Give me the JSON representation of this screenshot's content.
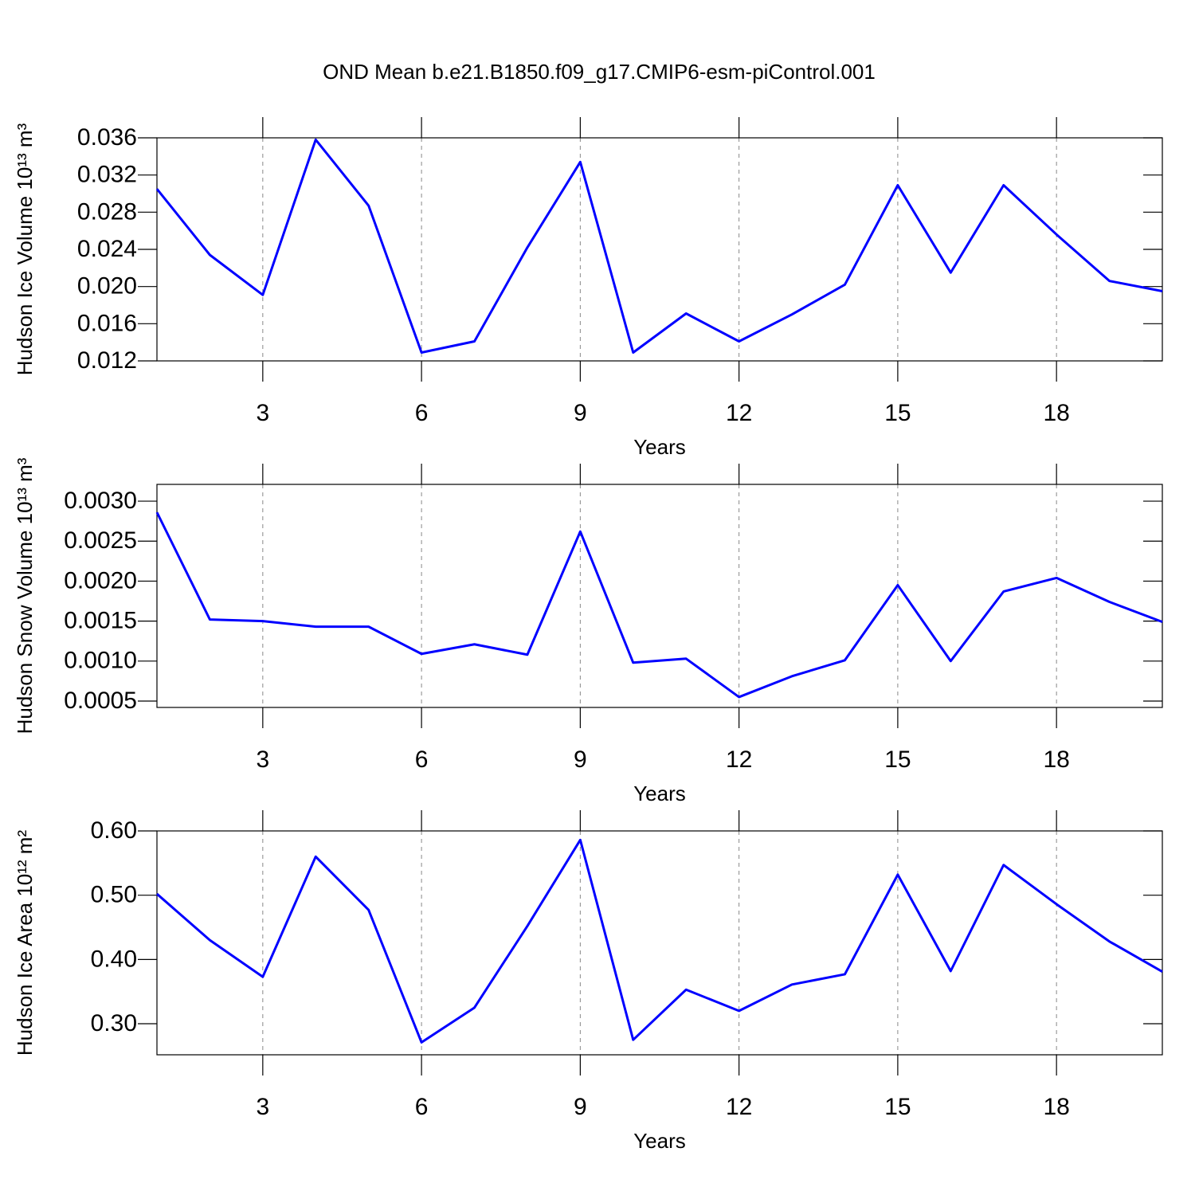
{
  "chart_data": [
    {
      "type": "line",
      "title": "OND Mean b.e21.B1850.f09_g17.CMIP6-esm-piControl.001",
      "ylabel": "Hudson Ice Volume 10¹³ m³",
      "xlabel": "Years",
      "x": [
        1,
        2,
        3,
        4,
        5,
        6,
        7,
        8,
        9,
        10,
        11,
        12,
        13,
        14,
        15,
        16,
        17,
        18,
        19,
        20
      ],
      "series": [
        {
          "color": "#0000ff",
          "values": [
            0.0305,
            0.0234,
            0.0191,
            0.0358,
            0.0287,
            0.0129,
            0.0141,
            0.0242,
            0.0334,
            0.0129,
            0.0171,
            0.0141,
            0.017,
            0.0202,
            0.0309,
            0.0215,
            0.0309,
            0.0256,
            0.0206,
            0.0195
          ]
        }
      ],
      "xlim": [
        1,
        20
      ],
      "xticks": [
        3,
        6,
        9,
        12,
        15,
        18
      ],
      "ylim": [
        0.012,
        0.036
      ],
      "yticks": [
        0.012,
        0.016,
        {
          "value": 0.02,
          "label": "0.020"
        },
        0.024,
        0.028,
        0.032,
        0.036
      ],
      "grid": true
    },
    {
      "type": "line",
      "ylabel": "Hudson Snow Volume 10¹³ m³",
      "xlabel": "Years",
      "x": [
        1,
        2,
        3,
        4,
        5,
        6,
        7,
        8,
        9,
        10,
        11,
        12,
        13,
        14,
        15,
        16,
        17,
        18,
        19,
        20
      ],
      "series": [
        {
          "color": "#0000ff",
          "values": [
            0.00286,
            0.00152,
            0.0015,
            0.00143,
            0.00143,
            0.00109,
            0.00121,
            0.00108,
            0.00262,
            0.00098,
            0.00103,
            0.00055,
            0.00081,
            0.00101,
            0.00195,
            0.001,
            0.00187,
            0.00204,
            0.00174,
            0.00149
          ]
        }
      ],
      "xlim": [
        1,
        20
      ],
      "xticks": [
        3,
        6,
        9,
        12,
        15,
        18
      ],
      "ylim": [
        0.00042,
        0.00321
      ],
      "yticks": [
        0.0005,
        {
          "value": 0.001,
          "label": "0.0010"
        },
        0.0015,
        {
          "value": 0.002,
          "label": "0.0020"
        },
        0.0025,
        {
          "value": 0.003,
          "label": "0.0030"
        }
      ],
      "grid": true
    },
    {
      "type": "line",
      "ylabel": "Hudson Ice Area 10¹² m²",
      "xlabel": "Years",
      "x": [
        1,
        2,
        3,
        4,
        5,
        6,
        7,
        8,
        9,
        10,
        11,
        12,
        13,
        14,
        15,
        16,
        17,
        18,
        19,
        20
      ],
      "series": [
        {
          "color": "#0000ff",
          "values": [
            0.502,
            0.43,
            0.373,
            0.56,
            0.477,
            0.271,
            0.325,
            0.452,
            0.586,
            0.275,
            0.353,
            0.32,
            0.361,
            0.377,
            0.532,
            0.382,
            0.547,
            0.486,
            0.428,
            0.381
          ]
        }
      ],
      "xlim": [
        1,
        20
      ],
      "xticks": [
        3,
        6,
        9,
        12,
        15,
        18
      ],
      "ylim": [
        0.2517,
        0.6
      ],
      "yticks": [
        {
          "value": 0.3,
          "label": "0.30"
        },
        {
          "value": 0.4,
          "label": "0.40"
        },
        {
          "value": 0.5,
          "label": "0.50"
        },
        {
          "value": 0.6,
          "label": "0.60"
        }
      ],
      "grid": true
    }
  ]
}
